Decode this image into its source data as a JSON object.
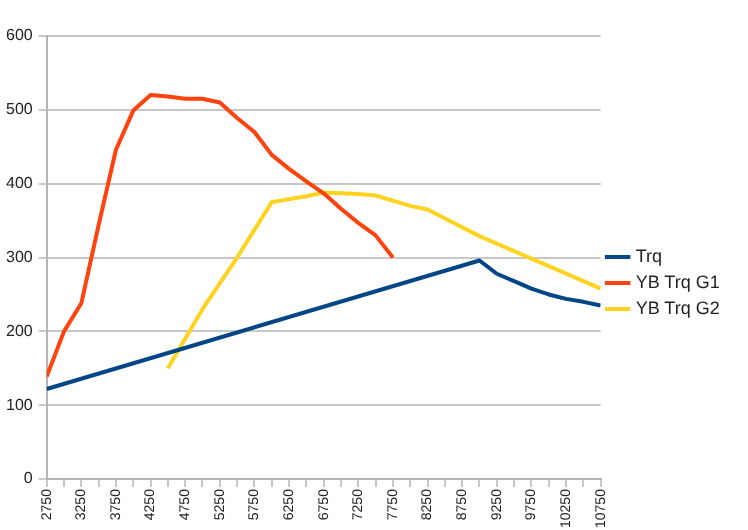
{
  "chart_data": {
    "type": "line",
    "legend": "right",
    "grid": "y",
    "marker": "none",
    "line_style": "solid",
    "xlim": [
      2750,
      10750
    ],
    "xticks": [
      2750,
      {
        "value": 3000,
        "label": null
      },
      3250,
      {
        "value": 3500,
        "label": null
      },
      3750,
      {
        "value": 4000,
        "label": null
      },
      4250,
      {
        "value": 4500,
        "label": null
      },
      4750,
      {
        "value": 5000,
        "label": null
      },
      5250,
      {
        "value": 5500,
        "label": null
      },
      5750,
      {
        "value": 6000,
        "label": null
      },
      6250,
      {
        "value": 6500,
        "label": null
      },
      6750,
      {
        "value": 7000,
        "label": null
      },
      7250,
      {
        "value": 7500,
        "label": null
      },
      7750,
      {
        "value": 8000,
        "label": null
      },
      8250,
      {
        "value": 8500,
        "label": null
      },
      8750,
      {
        "value": 9000,
        "label": null
      },
      9250,
      {
        "value": 9500,
        "label": null
      },
      9750,
      {
        "value": 10000,
        "label": null
      },
      10250,
      {
        "value": 10500,
        "label": null
      },
      10750
    ],
    "ylim": [
      0,
      600
    ],
    "yticks": [
      0,
      100,
      200,
      300,
      400,
      500,
      600
    ],
    "series": [
      {
        "name": "Trq",
        "color": "#004586",
        "x": [
          2750,
          9000,
          9250,
          9500,
          9750,
          10000,
          10250,
          10500,
          10750
        ],
        "values": [
          122,
          296,
          278,
          268,
          258,
          250,
          244,
          240,
          235
        ]
      },
      {
        "name": "YB Trq G1",
        "color": "#ff420e",
        "x": [
          2750,
          3000,
          3250,
          3500,
          3750,
          4000,
          4250,
          4500,
          4750,
          5000,
          5250,
          5500,
          5750,
          6000,
          6250,
          6500,
          6750,
          7000,
          7250,
          7500,
          7750
        ],
        "values": [
          139,
          200,
          238,
          344,
          446,
          499,
          520,
          518,
          515,
          515,
          510,
          489,
          470,
          439,
          420,
          403,
          387,
          366,
          347,
          330,
          300
        ]
      },
      {
        "name": "YB Trq G2",
        "color": "#ffd320",
        "x": [
          4500,
          5000,
          5500,
          6000,
          6500,
          6750,
          7250,
          7500,
          8000,
          8250,
          9000,
          10750
        ],
        "values": [
          150,
          230,
          300,
          375,
          383,
          388,
          386,
          384,
          370,
          365,
          329,
          258
        ]
      }
    ]
  }
}
